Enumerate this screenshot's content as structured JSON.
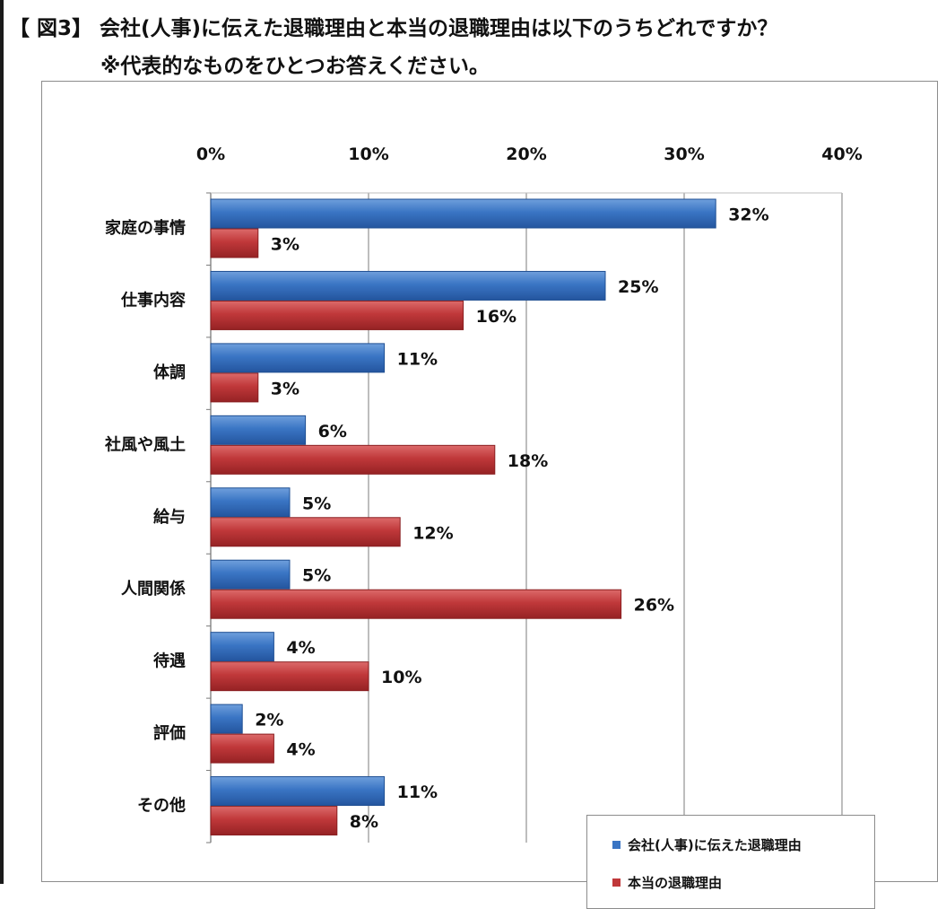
{
  "title": {
    "line1": "【 図3】 会社(人事)に伝えた退職理由と本当の退職理由は以下のうちどれですか？",
    "line2": "※代表的なものをひとつお答えください。"
  },
  "colors": {
    "series_1": "#3a75c4",
    "series_1_dark": "#1f4f93",
    "series_2": "#c0383a",
    "series_2_dark": "#8a1f21"
  },
  "chart_data": {
    "type": "bar",
    "orientation": "horizontal",
    "categories": [
      "家庭の事情",
      "仕事内容",
      "体調",
      "社風や風土",
      "給与",
      "人間関係",
      "待遇",
      "評価",
      "その他"
    ],
    "series": [
      {
        "name": "会社(人事)に伝えた退職理由",
        "values": [
          32,
          25,
          11,
          6,
          5,
          5,
          4,
          2,
          11
        ],
        "labels": [
          "32%",
          "25%",
          "11%",
          "6%",
          "5%",
          "5%",
          "4%",
          "2%",
          "11%"
        ]
      },
      {
        "name": "本当の退職理由",
        "values": [
          3,
          16,
          3,
          18,
          12,
          26,
          10,
          4,
          8
        ],
        "labels": [
          "3%",
          "16%",
          "3%",
          "18%",
          "12%",
          "26%",
          "10%",
          "4%",
          "8%"
        ]
      }
    ],
    "xlim": [
      0,
      40
    ],
    "ticks": [
      "0%",
      "10%",
      "20%",
      "30%",
      "40%"
    ],
    "tick_values": [
      0,
      10,
      20,
      30,
      40
    ],
    "grid": true,
    "legend_position": "bottom-right"
  }
}
